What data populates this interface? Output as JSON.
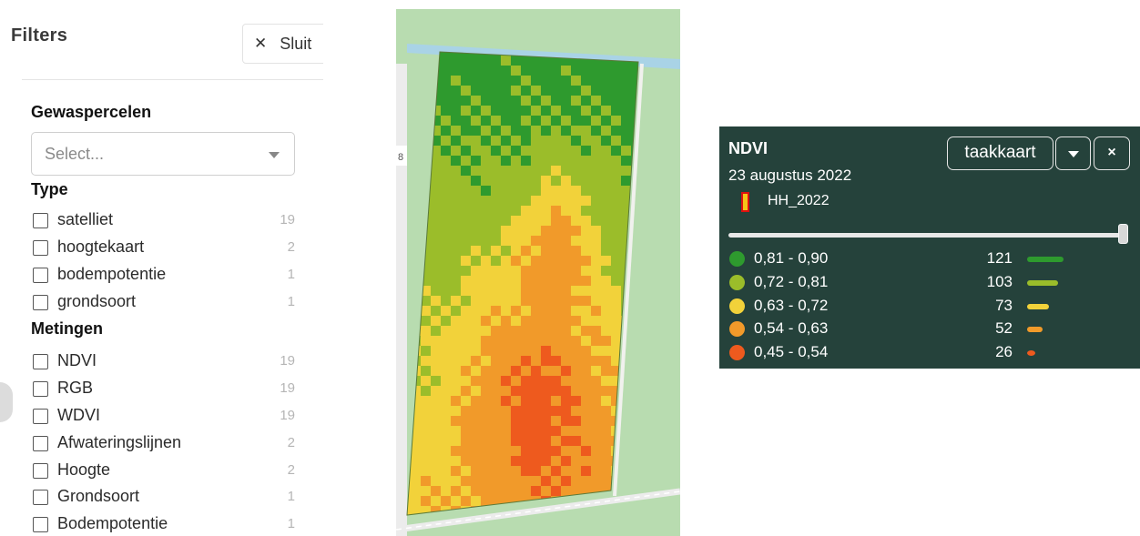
{
  "filters": {
    "title": "Filters",
    "close_icon": "close-icon",
    "close_label": "Sluit",
    "gewaspercelen": {
      "heading": "Gewaspercelen",
      "placeholder": "Select..."
    },
    "type": {
      "heading": "Type",
      "options": [
        {
          "label": "satelliet",
          "count": "19"
        },
        {
          "label": "hoogtekaart",
          "count": "2"
        },
        {
          "label": "bodempotentie",
          "count": "1"
        },
        {
          "label": "grondsoort",
          "count": "1"
        }
      ]
    },
    "metingen": {
      "heading": "Metingen",
      "options": [
        {
          "label": "NDVI",
          "count": "19"
        },
        {
          "label": "RGB",
          "count": "19"
        },
        {
          "label": "WDVI",
          "count": "19"
        },
        {
          "label": "Afwateringslijnen",
          "count": "2"
        },
        {
          "label": "Hoogte",
          "count": "2"
        },
        {
          "label": "Grondsoort",
          "count": "1"
        },
        {
          "label": "Bodempotentie",
          "count": "1"
        }
      ]
    }
  },
  "map": {
    "road_label": "8",
    "colors": {
      "background": "#b8dcb0",
      "water": "#a9d3e6"
    }
  },
  "ndvi_panel": {
    "title": "NDVI",
    "date": "23 augustus 2022",
    "layer_name": "HH_2022",
    "mode_button": "taakkaart",
    "close_label": "×",
    "slider_level": 1.0,
    "classes": [
      {
        "range": "0,81 - 0,90",
        "count": 121,
        "color": "#2e9a2e"
      },
      {
        "range": "0,72 - 0,81",
        "count": 103,
        "color": "#9bbd2a"
      },
      {
        "range": "0,63 - 0,72",
        "count": 73,
        "color": "#f2d23a"
      },
      {
        "range": "0,54 - 0,63",
        "count": 52,
        "color": "#f19a2a"
      },
      {
        "range": "0,45 - 0,54",
        "count": 26,
        "color": "#ee5a1e"
      }
    ]
  }
}
